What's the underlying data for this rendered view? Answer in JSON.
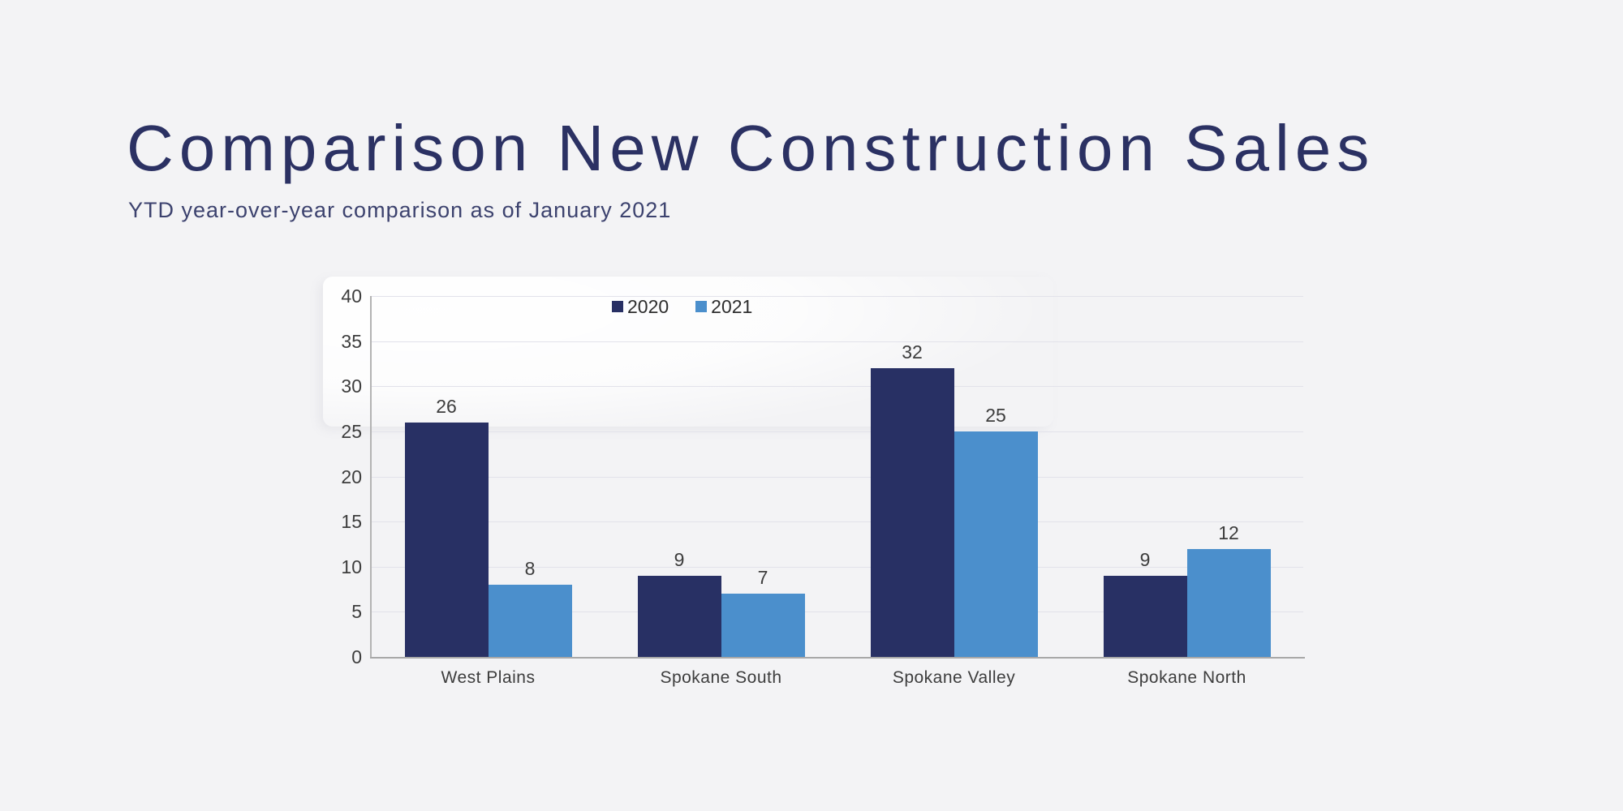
{
  "page": {
    "title": "Comparison New Construction Sales",
    "subtitle": "YTD year-over-year comparison as of January 2021"
  },
  "chart_data": {
    "type": "bar",
    "title": "",
    "xlabel": "",
    "ylabel": "",
    "categories": [
      "West Plains",
      "Spokane South",
      "Spokane Valley",
      "Spokane North"
    ],
    "series": [
      {
        "name": "2020",
        "color": "#283064",
        "values": [
          26,
          9,
          32,
          9
        ]
      },
      {
        "name": "2021",
        "color": "#4b8fcc",
        "values": [
          8,
          7,
          25,
          12
        ]
      }
    ],
    "ylim": [
      0,
      40
    ],
    "yticks": [
      0,
      5,
      10,
      15,
      20,
      25,
      30,
      35,
      40
    ],
    "grid": true,
    "data_labels": true,
    "legend_position": "top-center"
  },
  "colors": {
    "background": "#f3f3f5",
    "title_text": "#2b3163",
    "subtitle_text": "#3c426e",
    "series_2020": "#283064",
    "series_2021": "#4b8fcc",
    "gridline": "#e2e2ea",
    "axis_line": "#a8a8a8",
    "tick_text": "#3d3d3d"
  }
}
